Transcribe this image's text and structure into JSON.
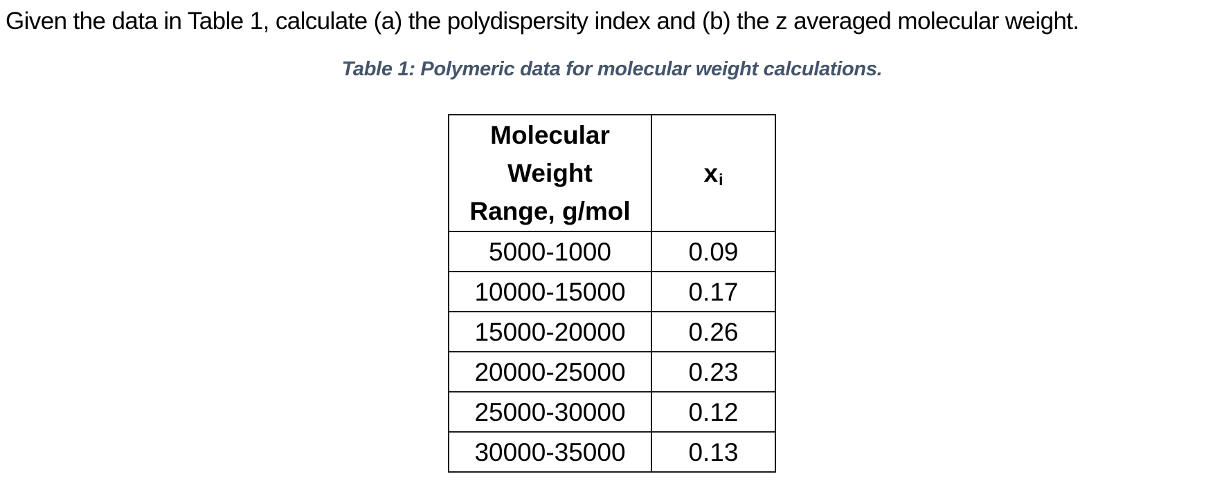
{
  "question": "Given the data in Table 1, calculate (a) the polydispersity index and (b) the z averaged molecular weight.",
  "caption": "Table 1: Polymeric data for molecular weight calculations.",
  "colors": {
    "caption_text": "#44546A",
    "body_text": "#000000",
    "table_border": "#1c1c1c",
    "background": "#ffffff"
  },
  "table": {
    "header_col1_lines": [
      "Molecular",
      "Weight",
      "Range, g/mol"
    ],
    "header_col2_base": "x",
    "header_col2_sub": "i",
    "rows": [
      {
        "range": "5000-1000",
        "xi": "0.09"
      },
      {
        "range": "10000-15000",
        "xi": "0.17"
      },
      {
        "range": "15000-20000",
        "xi": "0.26"
      },
      {
        "range": "20000-25000",
        "xi": "0.23"
      },
      {
        "range": "25000-30000",
        "xi": "0.12"
      },
      {
        "range": "30000-35000",
        "xi": "0.13"
      }
    ]
  }
}
